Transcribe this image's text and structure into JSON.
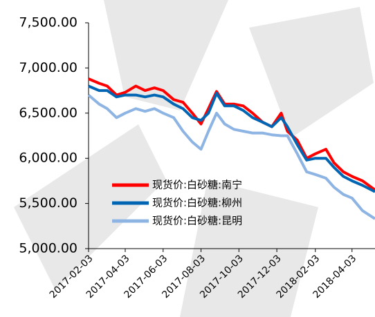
{
  "chart_data": {
    "type": "line",
    "x": [
      "2017-02-03",
      "2017-02-20",
      "2017-03-05",
      "2017-03-20",
      "2017-04-03",
      "2017-04-20",
      "2017-05-05",
      "2017-05-20",
      "2017-06-03",
      "2017-06-20",
      "2017-07-05",
      "2017-07-20",
      "2017-08-03",
      "2017-08-15",
      "2017-08-28",
      "2017-09-10",
      "2017-09-25",
      "2017-10-10",
      "2017-10-25",
      "2017-11-10",
      "2017-11-25",
      "2017-12-10",
      "2017-12-20",
      "2018-01-05",
      "2018-01-20",
      "2018-02-03",
      "2018-02-20",
      "2018-03-05",
      "2018-03-20",
      "2018-04-03",
      "2018-04-20",
      "2018-05-10"
    ],
    "series": [
      {
        "name": "现货价:白砂糖:南宁",
        "color": "#ff0000",
        "values": [
          6880,
          6830,
          6800,
          6700,
          6730,
          6800,
          6750,
          6780,
          6750,
          6650,
          6620,
          6500,
          6380,
          6550,
          6740,
          6600,
          6600,
          6580,
          6500,
          6400,
          6350,
          6500,
          6300,
          6200,
          6000,
          6050,
          6100,
          5950,
          5850,
          5800,
          5750,
          5650
        ]
      },
      {
        "name": "现货价:白砂糖:柳州",
        "color": "#0066b3",
        "values": [
          6800,
          6750,
          6750,
          6680,
          6700,
          6700,
          6680,
          6700,
          6680,
          6600,
          6550,
          6450,
          6420,
          6500,
          6720,
          6580,
          6580,
          6530,
          6450,
          6400,
          6350,
          6450,
          6350,
          6150,
          5980,
          6000,
          6000,
          5900,
          5800,
          5750,
          5700,
          5630
        ]
      },
      {
        "name": "现货价:白砂糖:昆明",
        "color": "#8db4e2",
        "values": [
          6700,
          6600,
          6550,
          6450,
          6500,
          6550,
          6520,
          6550,
          6500,
          6450,
          6300,
          6180,
          6100,
          6300,
          6500,
          6380,
          6320,
          6300,
          6280,
          6280,
          6260,
          6250,
          6250,
          6050,
          5850,
          5820,
          5780,
          5680,
          5600,
          5560,
          5420,
          5330
        ]
      }
    ],
    "xlim": [
      "2017-02-03",
      "2018-05-10"
    ],
    "xticks": [
      "2017-02-03",
      "2017-04-03",
      "2017-06-03",
      "2017-08-03",
      "2017-10-03",
      "2017-12-03",
      "2018-02-03",
      "2018-04-03"
    ],
    "ylim": [
      5000,
      7500
    ],
    "yticks": [
      {
        "value": 5000,
        "label": "5,000.00"
      },
      {
        "value": 5500,
        "label": "5,500.00"
      },
      {
        "value": 6000,
        "label": "6,000.00"
      },
      {
        "value": 6500,
        "label": "6,500.00"
      },
      {
        "value": 7000,
        "label": "7,000.00"
      },
      {
        "value": 7500,
        "label": "7,500.00"
      }
    ]
  }
}
